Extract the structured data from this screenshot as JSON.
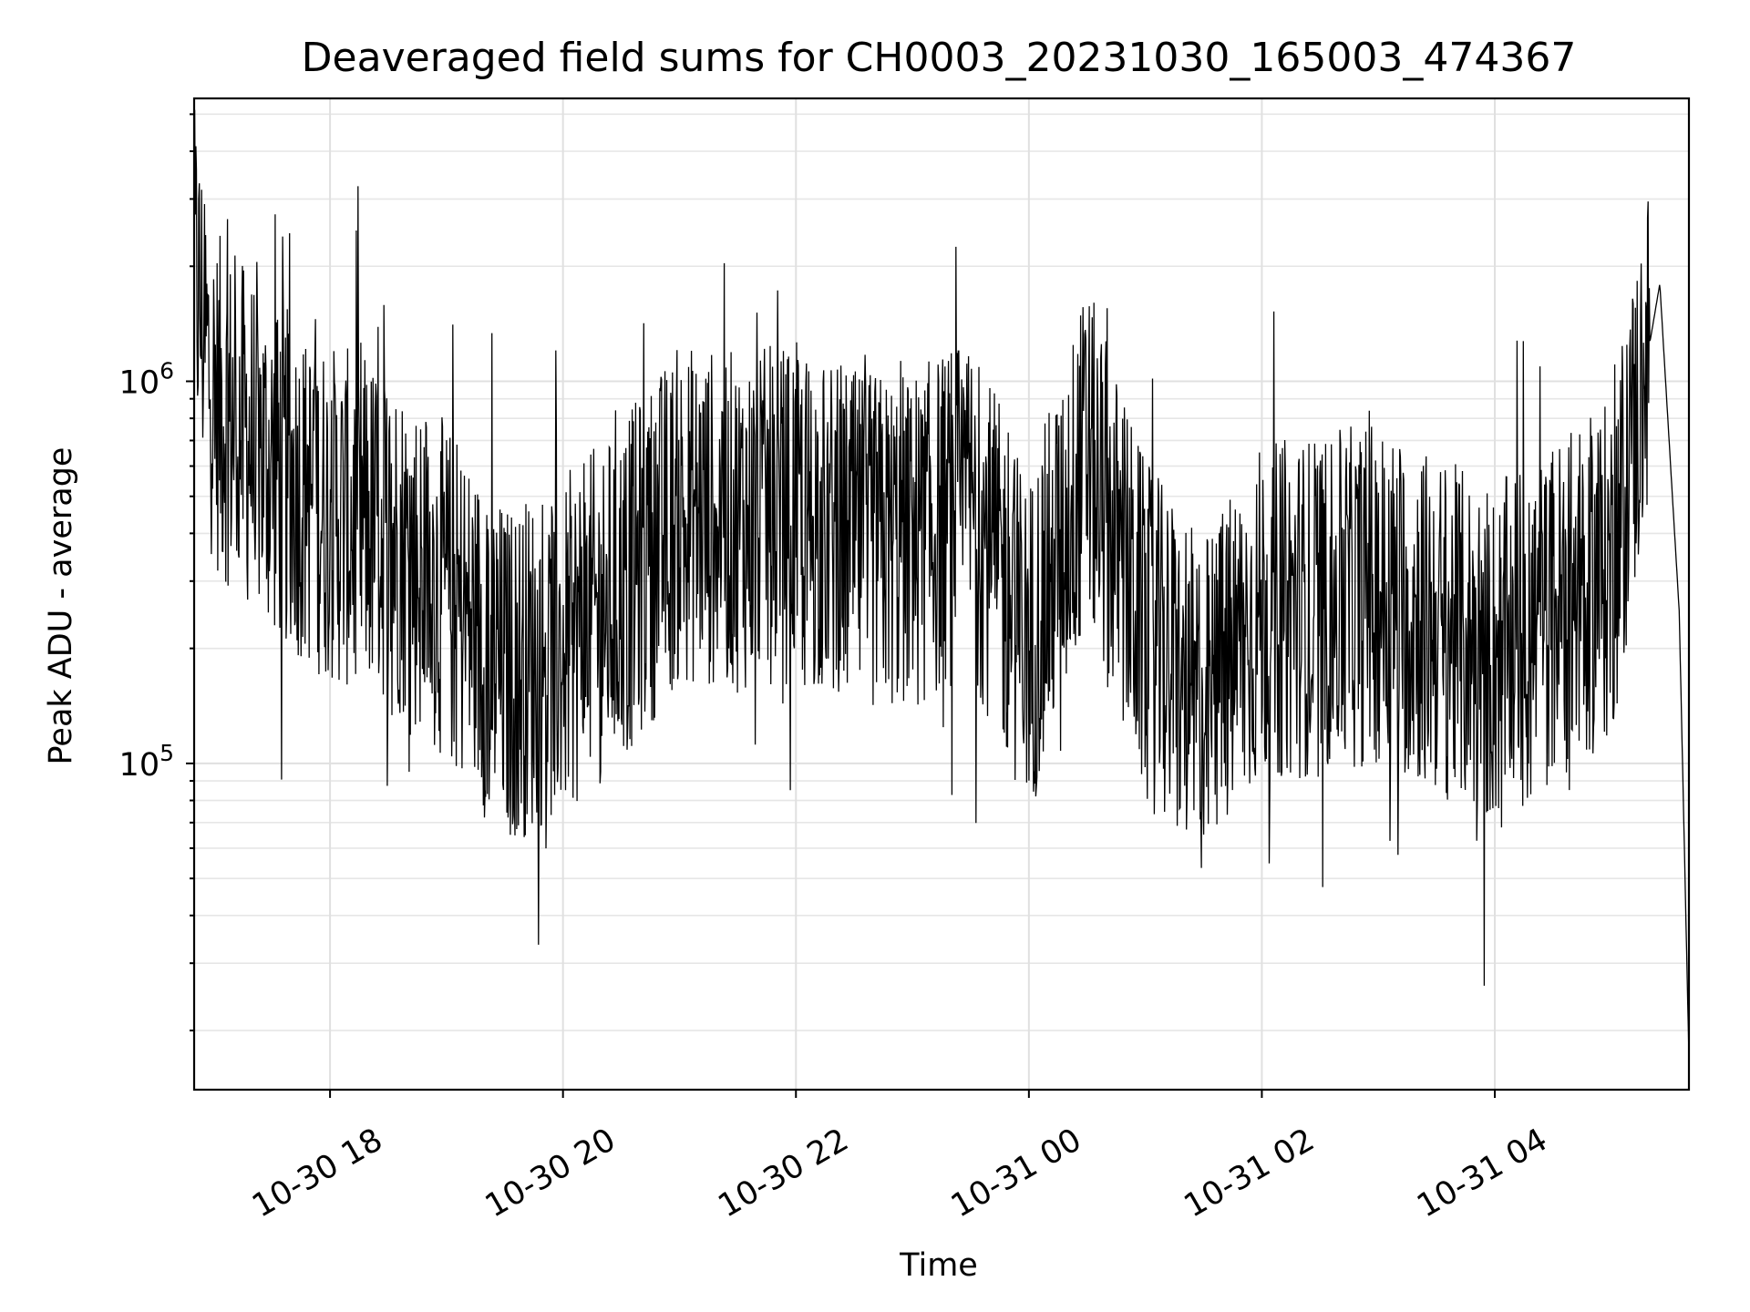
{
  "chart_data": {
    "type": "line",
    "title": "Deaveraged field sums for CH0003_20231030_165003_474367",
    "xlabel": "Time",
    "ylabel": "Peak ADU - average",
    "yscale": "log",
    "grid": true,
    "x_tick_labels": [
      "10-30 18",
      "10-30 20",
      "10-30 22",
      "10-31 00",
      "10-31 02",
      "10-31 04"
    ],
    "x_ticks": [
      "2023-10-30 18:00",
      "2023-10-30 20:00",
      "2023-10-30 22:00",
      "2023-10-31 00:00",
      "2023-10-31 02:00",
      "2023-10-31 04:00"
    ],
    "xlim": [
      "2023-10-30 16:50",
      "2023-10-31 05:40"
    ],
    "y_ticks": [
      {
        "value": 100000,
        "base": "10",
        "exp": "5"
      },
      {
        "value": 1000000,
        "base": "10",
        "exp": "6"
      }
    ],
    "ylim": [
      14000,
      5500000
    ],
    "line_color": "#000000",
    "series": [
      {
        "values": [
          {
            "x": "2023-10-30 16:50",
            "y": 2000000
          },
          {
            "x": "2023-10-30 17:00",
            "y": 900000
          },
          {
            "x": "2023-10-30 17:30",
            "y": 600000
          },
          {
            "x": "2023-10-30 18:00",
            "y": 450000
          },
          {
            "x": "2023-10-30 18:30",
            "y": 400000
          },
          {
            "x": "2023-10-30 19:00",
            "y": 280000
          },
          {
            "x": "2023-10-30 19:30",
            "y": 170000
          },
          {
            "x": "2023-10-30 20:00",
            "y": 200000
          },
          {
            "x": "2023-10-30 20:30",
            "y": 280000
          },
          {
            "x": "2023-10-30 21:00",
            "y": 450000
          },
          {
            "x": "2023-10-30 21:30",
            "y": 430000
          },
          {
            "x": "2023-10-30 22:00",
            "y": 450000
          },
          {
            "x": "2023-10-30 22:30",
            "y": 380000
          },
          {
            "x": "2023-10-30 23:00",
            "y": 380000
          },
          {
            "x": "2023-10-30 23:30",
            "y": 480000
          },
          {
            "x": "2023-10-31 00:00",
            "y": 200000
          },
          {
            "x": "2023-10-31 00:30",
            "y": 650000
          },
          {
            "x": "2023-10-31 01:00",
            "y": 220000
          },
          {
            "x": "2023-10-31 01:30",
            "y": 140000
          },
          {
            "x": "2023-10-31 02:00",
            "y": 250000
          },
          {
            "x": "2023-10-31 02:30",
            "y": 260000
          },
          {
            "x": "2023-10-31 03:00",
            "y": 280000
          },
          {
            "x": "2023-10-31 03:30",
            "y": 230000
          },
          {
            "x": "2023-10-31 04:00",
            "y": 190000
          },
          {
            "x": "2023-10-31 04:30",
            "y": 250000
          },
          {
            "x": "2023-10-31 05:00",
            "y": 320000
          },
          {
            "x": "2023-10-31 05:25",
            "y": 1800000
          },
          {
            "x": "2023-10-31 05:35",
            "y": 250000
          },
          {
            "x": "2023-10-31 05:40",
            "y": 17000
          }
        ]
      }
    ]
  }
}
